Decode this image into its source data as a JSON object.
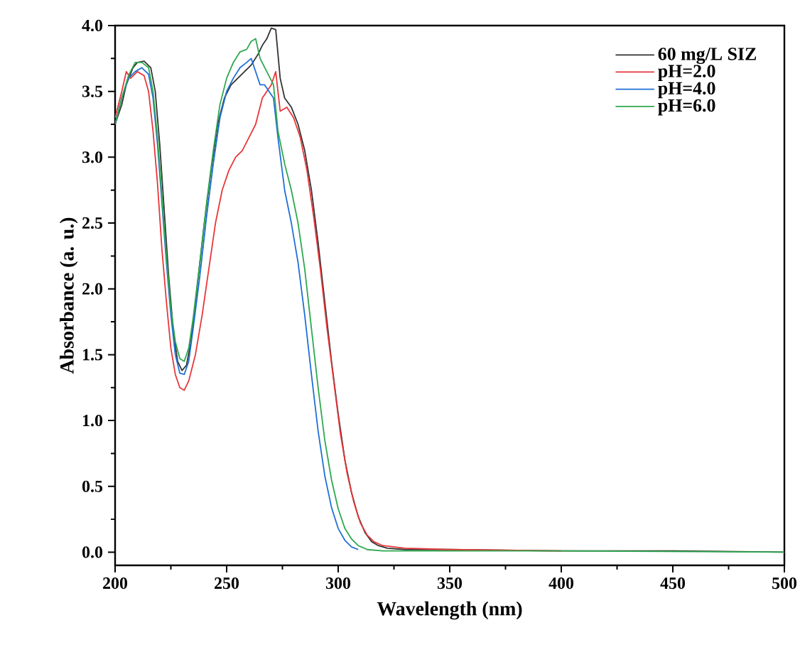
{
  "chart_data": {
    "type": "line",
    "xlabel": "Wavelength (nm)",
    "ylabel": "Absorbance (a. u.)",
    "xlim": [
      200,
      500
    ],
    "ylim": [
      -0.1,
      4.0
    ],
    "xticks": [
      200,
      250,
      300,
      350,
      400,
      450,
      500
    ],
    "yticks": [
      {
        "value": 0,
        "label": "0.0"
      },
      {
        "value": 0.5,
        "label": "0.5"
      },
      {
        "value": 1,
        "label": "1.0"
      },
      {
        "value": 1.5,
        "label": "1.5"
      },
      {
        "value": 2,
        "label": "2.0"
      },
      {
        "value": 2.5,
        "label": "2.5"
      },
      {
        "value": 3,
        "label": "3.0"
      },
      {
        "value": 3.5,
        "label": "3.5"
      },
      {
        "value": 4,
        "label": "4.0"
      }
    ],
    "grid": false,
    "legend": "top right",
    "marker": "none",
    "line_style": "solid",
    "series": [
      {
        "name": "60 mg/L SIZ",
        "color": "#333333",
        "x": [
          200,
          203,
          205,
          208,
          210,
          213,
          216,
          218,
          220,
          222,
          224,
          226,
          228,
          230,
          232,
          234,
          236,
          238,
          240,
          243,
          246,
          249,
          252,
          255,
          258,
          261,
          264,
          266,
          268,
          270,
          272,
          274,
          276,
          279,
          282,
          285,
          288,
          291,
          294,
          297,
          300,
          303,
          306,
          309,
          312,
          315,
          318,
          322,
          330,
          350,
          400,
          450,
          500
        ],
        "values": [
          3.25,
          3.4,
          3.55,
          3.68,
          3.72,
          3.73,
          3.68,
          3.5,
          3.1,
          2.6,
          2.1,
          1.7,
          1.45,
          1.38,
          1.42,
          1.6,
          1.9,
          2.2,
          2.5,
          2.9,
          3.25,
          3.45,
          3.55,
          3.6,
          3.65,
          3.7,
          3.78,
          3.85,
          3.9,
          3.98,
          3.97,
          3.6,
          3.45,
          3.38,
          3.25,
          3.05,
          2.75,
          2.35,
          1.9,
          1.45,
          1.05,
          0.7,
          0.45,
          0.27,
          0.15,
          0.08,
          0.05,
          0.03,
          0.02,
          0.02,
          0.01,
          0.01,
          0
        ]
      },
      {
        "name": "pH=2.0",
        "color": "#e8373a",
        "x": [
          200,
          203,
          205,
          207,
          210,
          213,
          215,
          217,
          219,
          221,
          223,
          225,
          227,
          229,
          231,
          233,
          236,
          239,
          242,
          245,
          248,
          251,
          254,
          257,
          260,
          263,
          266,
          268,
          270,
          272,
          274,
          277,
          280,
          283,
          286,
          289,
          292,
          295,
          298,
          301,
          304,
          307,
          310,
          313,
          316,
          320,
          330,
          350,
          400
        ],
        "values": [
          3.3,
          3.5,
          3.65,
          3.6,
          3.65,
          3.62,
          3.5,
          3.2,
          2.8,
          2.3,
          1.9,
          1.55,
          1.35,
          1.25,
          1.23,
          1.3,
          1.5,
          1.8,
          2.15,
          2.5,
          2.75,
          2.9,
          3.0,
          3.05,
          3.15,
          3.25,
          3.45,
          3.5,
          3.55,
          3.65,
          3.35,
          3.38,
          3.3,
          3.15,
          2.9,
          2.55,
          2.15,
          1.7,
          1.3,
          0.9,
          0.6,
          0.38,
          0.22,
          0.13,
          0.08,
          0.05,
          0.03,
          0.02,
          0.01
        ]
      },
      {
        "name": "pH=4.0",
        "color": "#1f6fd6",
        "x": [
          200,
          203,
          206,
          209,
          212,
          215,
          217,
          219,
          221,
          223,
          225,
          227,
          229,
          231,
          233,
          235,
          238,
          241,
          244,
          247,
          250,
          253,
          256,
          259,
          261,
          263,
          265,
          267,
          269,
          271,
          273,
          276,
          279,
          282,
          285,
          288,
          291,
          294,
          297,
          300,
          303,
          306,
          309
        ],
        "values": [
          3.25,
          3.45,
          3.6,
          3.65,
          3.68,
          3.63,
          3.45,
          3.1,
          2.65,
          2.2,
          1.8,
          1.5,
          1.36,
          1.35,
          1.45,
          1.7,
          2.1,
          2.55,
          2.95,
          3.3,
          3.5,
          3.6,
          3.68,
          3.72,
          3.75,
          3.65,
          3.55,
          3.55,
          3.5,
          3.45,
          3.15,
          2.75,
          2.5,
          2.2,
          1.8,
          1.35,
          0.92,
          0.58,
          0.34,
          0.18,
          0.09,
          0.04,
          0.02
        ]
      },
      {
        "name": "pH=6.0",
        "color": "#2ea84f",
        "x": [
          200,
          203,
          206,
          209,
          212,
          215,
          217,
          219,
          221,
          223,
          225,
          227,
          229,
          231,
          233,
          235,
          238,
          241,
          244,
          247,
          250,
          253,
          256,
          259,
          261,
          263,
          265,
          268,
          271,
          273,
          276,
          279,
          282,
          285,
          288,
          291,
          294,
          297,
          300,
          303,
          306,
          309,
          313,
          320,
          400,
          500
        ],
        "values": [
          3.25,
          3.45,
          3.62,
          3.72,
          3.72,
          3.68,
          3.5,
          3.15,
          2.7,
          2.25,
          1.85,
          1.6,
          1.47,
          1.45,
          1.55,
          1.78,
          2.2,
          2.65,
          3.05,
          3.4,
          3.6,
          3.72,
          3.8,
          3.82,
          3.88,
          3.9,
          3.75,
          3.65,
          3.55,
          3.2,
          2.95,
          2.75,
          2.5,
          2.15,
          1.7,
          1.25,
          0.85,
          0.55,
          0.33,
          0.18,
          0.1,
          0.05,
          0.02,
          0.01,
          0.01,
          0
        ]
      }
    ]
  }
}
